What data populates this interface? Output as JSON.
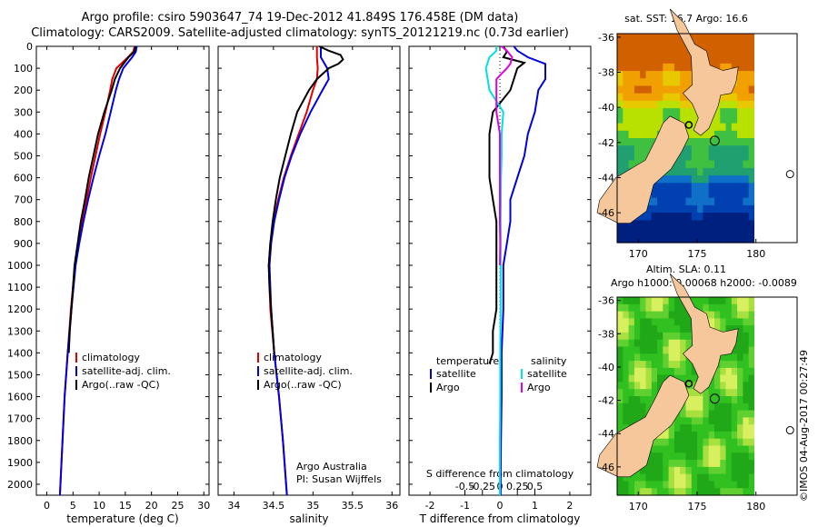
{
  "header": {
    "title_line1": "Argo profile: csiro 5903647_74 19-Dec-2012 41.849S 176.458E (DM data)",
    "title_line2": "Climatology: CARS2009. Satellite-adjusted climatology: synTS_20121219.nc (0.73d earlier)"
  },
  "side": {
    "sst_title": "sat. SST: 16.7 Argo: 16.6",
    "sla_title1": "Altim. SLA: 0.11",
    "sla_title2": "Argo h1000: 0.00068 h2000: -0.0089",
    "copyright": "©IMOS 04-Aug-2017 00:27:49"
  },
  "colors": {
    "climatology": "#e00000",
    "satellite": "#0000e0",
    "argo": "#000000",
    "s_sat": "#00e0e0",
    "s_argo": "#e000e0",
    "land": "#f5c79b"
  },
  "chart_data": [
    {
      "type": "line",
      "xlabel": "temperature (deg C)",
      "ylim": [
        2050,
        0
      ],
      "xlim": [
        -2,
        31
      ],
      "xticks": [
        0,
        5,
        10,
        15,
        20,
        25,
        30
      ],
      "yticks": [
        0,
        100,
        200,
        300,
        400,
        500,
        600,
        700,
        800,
        900,
        1000,
        1100,
        1200,
        1300,
        1400,
        1500,
        1600,
        1700,
        1800,
        1900,
        2000
      ],
      "legend": [
        "climatology",
        "satellite-adj. clim.",
        "Argo(..raw -QC)"
      ],
      "series": [
        {
          "name": "climatology",
          "color": "#e00000",
          "depth": [
            0,
            25,
            50,
            100,
            150,
            200,
            300,
            400,
            500,
            600,
            700,
            800,
            900,
            1000,
            1200,
            1400,
            1600,
            1800,
            2000,
            2050
          ],
          "values": [
            16.8,
            16.5,
            15.5,
            13.3,
            12.5,
            12.1,
            11.2,
            10.2,
            9.3,
            8.4,
            7.6,
            6.7,
            6.0,
            5.4,
            4.6,
            4.0,
            3.4,
            3.0,
            2.6,
            2.5
          ]
        },
        {
          "name": "satellite-adj. clim.",
          "color": "#0000e0",
          "depth": [
            0,
            25,
            50,
            100,
            150,
            200,
            300,
            400,
            500,
            600,
            700,
            800,
            900,
            1000,
            1200,
            1400,
            1600,
            1800,
            2000,
            2050
          ],
          "values": [
            17.2,
            17.0,
            16.3,
            14.6,
            13.8,
            13.2,
            12.2,
            11.2,
            10.0,
            8.9,
            7.9,
            7.0,
            6.2,
            5.5,
            4.7,
            4.0,
            3.4,
            3.0,
            2.6,
            2.5
          ]
        },
        {
          "name": "Argo(..raw -QC)",
          "color": "#000000",
          "depth": [
            0,
            25,
            50,
            100,
            150,
            200,
            300,
            400,
            500,
            600,
            700,
            800,
            900,
            1000,
            1100,
            1200,
            1300,
            1400
          ],
          "values": [
            16.9,
            16.7,
            15.6,
            14.0,
            13.0,
            12.4,
            11.0,
            9.8,
            8.9,
            8.0,
            7.3,
            6.5,
            5.9,
            5.3,
            5.0,
            4.7,
            4.4,
            4.2
          ]
        }
      ]
    },
    {
      "type": "line",
      "xlabel": "salinity",
      "ylim": [
        2050,
        0
      ],
      "xlim": [
        33.8,
        36.1
      ],
      "xticks": [
        34,
        34.5,
        35,
        35.5,
        36
      ],
      "xticklabels": [
        "34",
        "34.5",
        "35",
        "35.5",
        "36"
      ],
      "legend": [
        "climatology",
        "satellite-adj. clim.",
        "Argo(..raw -QC)"
      ],
      "annotation": [
        "Argo Australia",
        "PI: Susan Wijffels"
      ],
      "series": [
        {
          "name": "climatology",
          "color": "#e00000",
          "depth": [
            0,
            50,
            100,
            150,
            200,
            300,
            400,
            500,
            600,
            700,
            800,
            900,
            1000,
            1200,
            1400,
            1600,
            1800,
            2000,
            2050
          ],
          "values": [
            35.05,
            35.05,
            35.06,
            35.05,
            35.0,
            34.92,
            34.82,
            34.72,
            34.63,
            34.56,
            34.5,
            34.46,
            34.44,
            34.46,
            34.51,
            34.57,
            34.62,
            34.66,
            34.67
          ]
        },
        {
          "name": "satellite-adj. clim.",
          "color": "#0000e0",
          "depth": [
            0,
            50,
            100,
            150,
            200,
            300,
            400,
            500,
            600,
            700,
            800,
            900,
            1000,
            1200,
            1400,
            1600,
            1800,
            2000,
            2050
          ],
          "values": [
            35.1,
            35.1,
            35.18,
            35.2,
            35.12,
            34.97,
            34.84,
            34.73,
            34.64,
            34.57,
            34.51,
            34.47,
            34.45,
            34.47,
            34.51,
            34.57,
            34.62,
            34.66,
            34.67
          ]
        },
        {
          "name": "Argo(..raw -QC)",
          "color": "#000000",
          "depth": [
            0,
            20,
            40,
            60,
            80,
            100,
            150,
            200,
            300,
            400,
            500,
            600,
            700,
            800,
            900,
            1000,
            1100,
            1200,
            1300,
            1400
          ],
          "values": [
            35.08,
            35.2,
            35.35,
            35.38,
            35.32,
            35.2,
            35.05,
            34.95,
            34.8,
            34.72,
            34.65,
            34.58,
            34.53,
            34.49,
            34.46,
            34.44,
            34.45,
            34.47,
            34.49,
            34.51
          ]
        }
      ]
    },
    {
      "type": "line",
      "xlabel": "T difference from climatology",
      "xlabel_top": "S difference from climatology",
      "ylim": [
        2050,
        0
      ],
      "xlim": [
        -2.6,
        2.6
      ],
      "xticks": [
        -2,
        -1,
        0,
        1,
        2
      ],
      "xticklabels": [
        "-2",
        "-1",
        "0",
        "1",
        "2"
      ],
      "xticks_top": [
        -1,
        -0.5,
        0,
        0.5,
        1
      ],
      "xticklabels_top": [
        "-0.5",
        "-0.25",
        "0",
        "0.25",
        "0.5"
      ],
      "legend_headers": [
        "temperature",
        "salinity"
      ],
      "legend": [
        "satellite",
        "Argo",
        "satellite",
        "Argo"
      ],
      "series": [
        {
          "name": "satellite",
          "color": "#0000e0",
          "depth": [
            0,
            20,
            50,
            80,
            100,
            150,
            200,
            300,
            400,
            500,
            600,
            700,
            800,
            900,
            1000,
            1200,
            1400,
            1600,
            1800,
            2000,
            2050
          ],
          "values": [
            0.4,
            0.5,
            0.8,
            1.3,
            1.3,
            1.3,
            1.1,
            1.0,
            0.8,
            0.7,
            0.5,
            0.3,
            0.3,
            0.2,
            0.1,
            0.1,
            0.05,
            0.05,
            0.03,
            0.02,
            0.02
          ]
        },
        {
          "name": "Argo",
          "color": "#000000",
          "depth": [
            0,
            25,
            50,
            75,
            100,
            150,
            200,
            300,
            400,
            500,
            600,
            700,
            800,
            900,
            1000,
            1100,
            1200,
            1300,
            1400,
            1450
          ],
          "values": [
            0.1,
            0.2,
            0.1,
            0.7,
            0.5,
            0.4,
            0.3,
            -0.2,
            -0.3,
            -0.3,
            -0.3,
            -0.2,
            -0.1,
            -0.1,
            -0.1,
            -0.1,
            -0.1,
            -0.2,
            -0.2,
            -0.3
          ]
        },
        {
          "name": "satellite",
          "color": "#00e0e0",
          "depth": [
            0,
            20,
            50,
            100,
            200,
            300,
            400,
            500,
            600,
            800,
            1000,
            1200,
            1400,
            1600,
            1800,
            2000,
            2050
          ],
          "values": [
            -0.1,
            -0.1,
            -0.3,
            -0.4,
            -0.3,
            0.1,
            0.05,
            0.05,
            0.03,
            0.02,
            0.02,
            0.02,
            0.01,
            0.01,
            0.0,
            0.0,
            0.0
          ]
        },
        {
          "name": "Argo",
          "color": "#e000e0",
          "depth": [
            0,
            20,
            50,
            80,
            100,
            150,
            200,
            300,
            400,
            500,
            600,
            700,
            800,
            900,
            1000
          ],
          "values": [
            0.05,
            0.2,
            0.35,
            0.3,
            0.2,
            -0.1,
            -0.1,
            -0.1,
            0.0,
            0.0,
            0.0,
            0.0,
            0.0,
            0.01,
            0.0
          ]
        }
      ]
    },
    {
      "type": "heatmap",
      "title": "sat. SST: 16.7 Argo: 16.6",
      "xticks": [
        170,
        175,
        180
      ],
      "yticks": [
        -36,
        -38,
        -40,
        -42,
        -44,
        -46
      ],
      "xlim": [
        168.2,
        183.5
      ],
      "ylim": [
        -47.7,
        -35.8
      ]
    },
    {
      "type": "heatmap",
      "title": "Altim. SLA: 0.11",
      "subtitle": "Argo h1000: 0.00068 h2000: -0.0089",
      "xticks": [
        170,
        175,
        180
      ],
      "yticks": [
        -36,
        -38,
        -40,
        -42,
        -44,
        -46
      ],
      "xlim": [
        168.2,
        183.5
      ],
      "ylim": [
        -47.7,
        -35.8
      ]
    }
  ]
}
